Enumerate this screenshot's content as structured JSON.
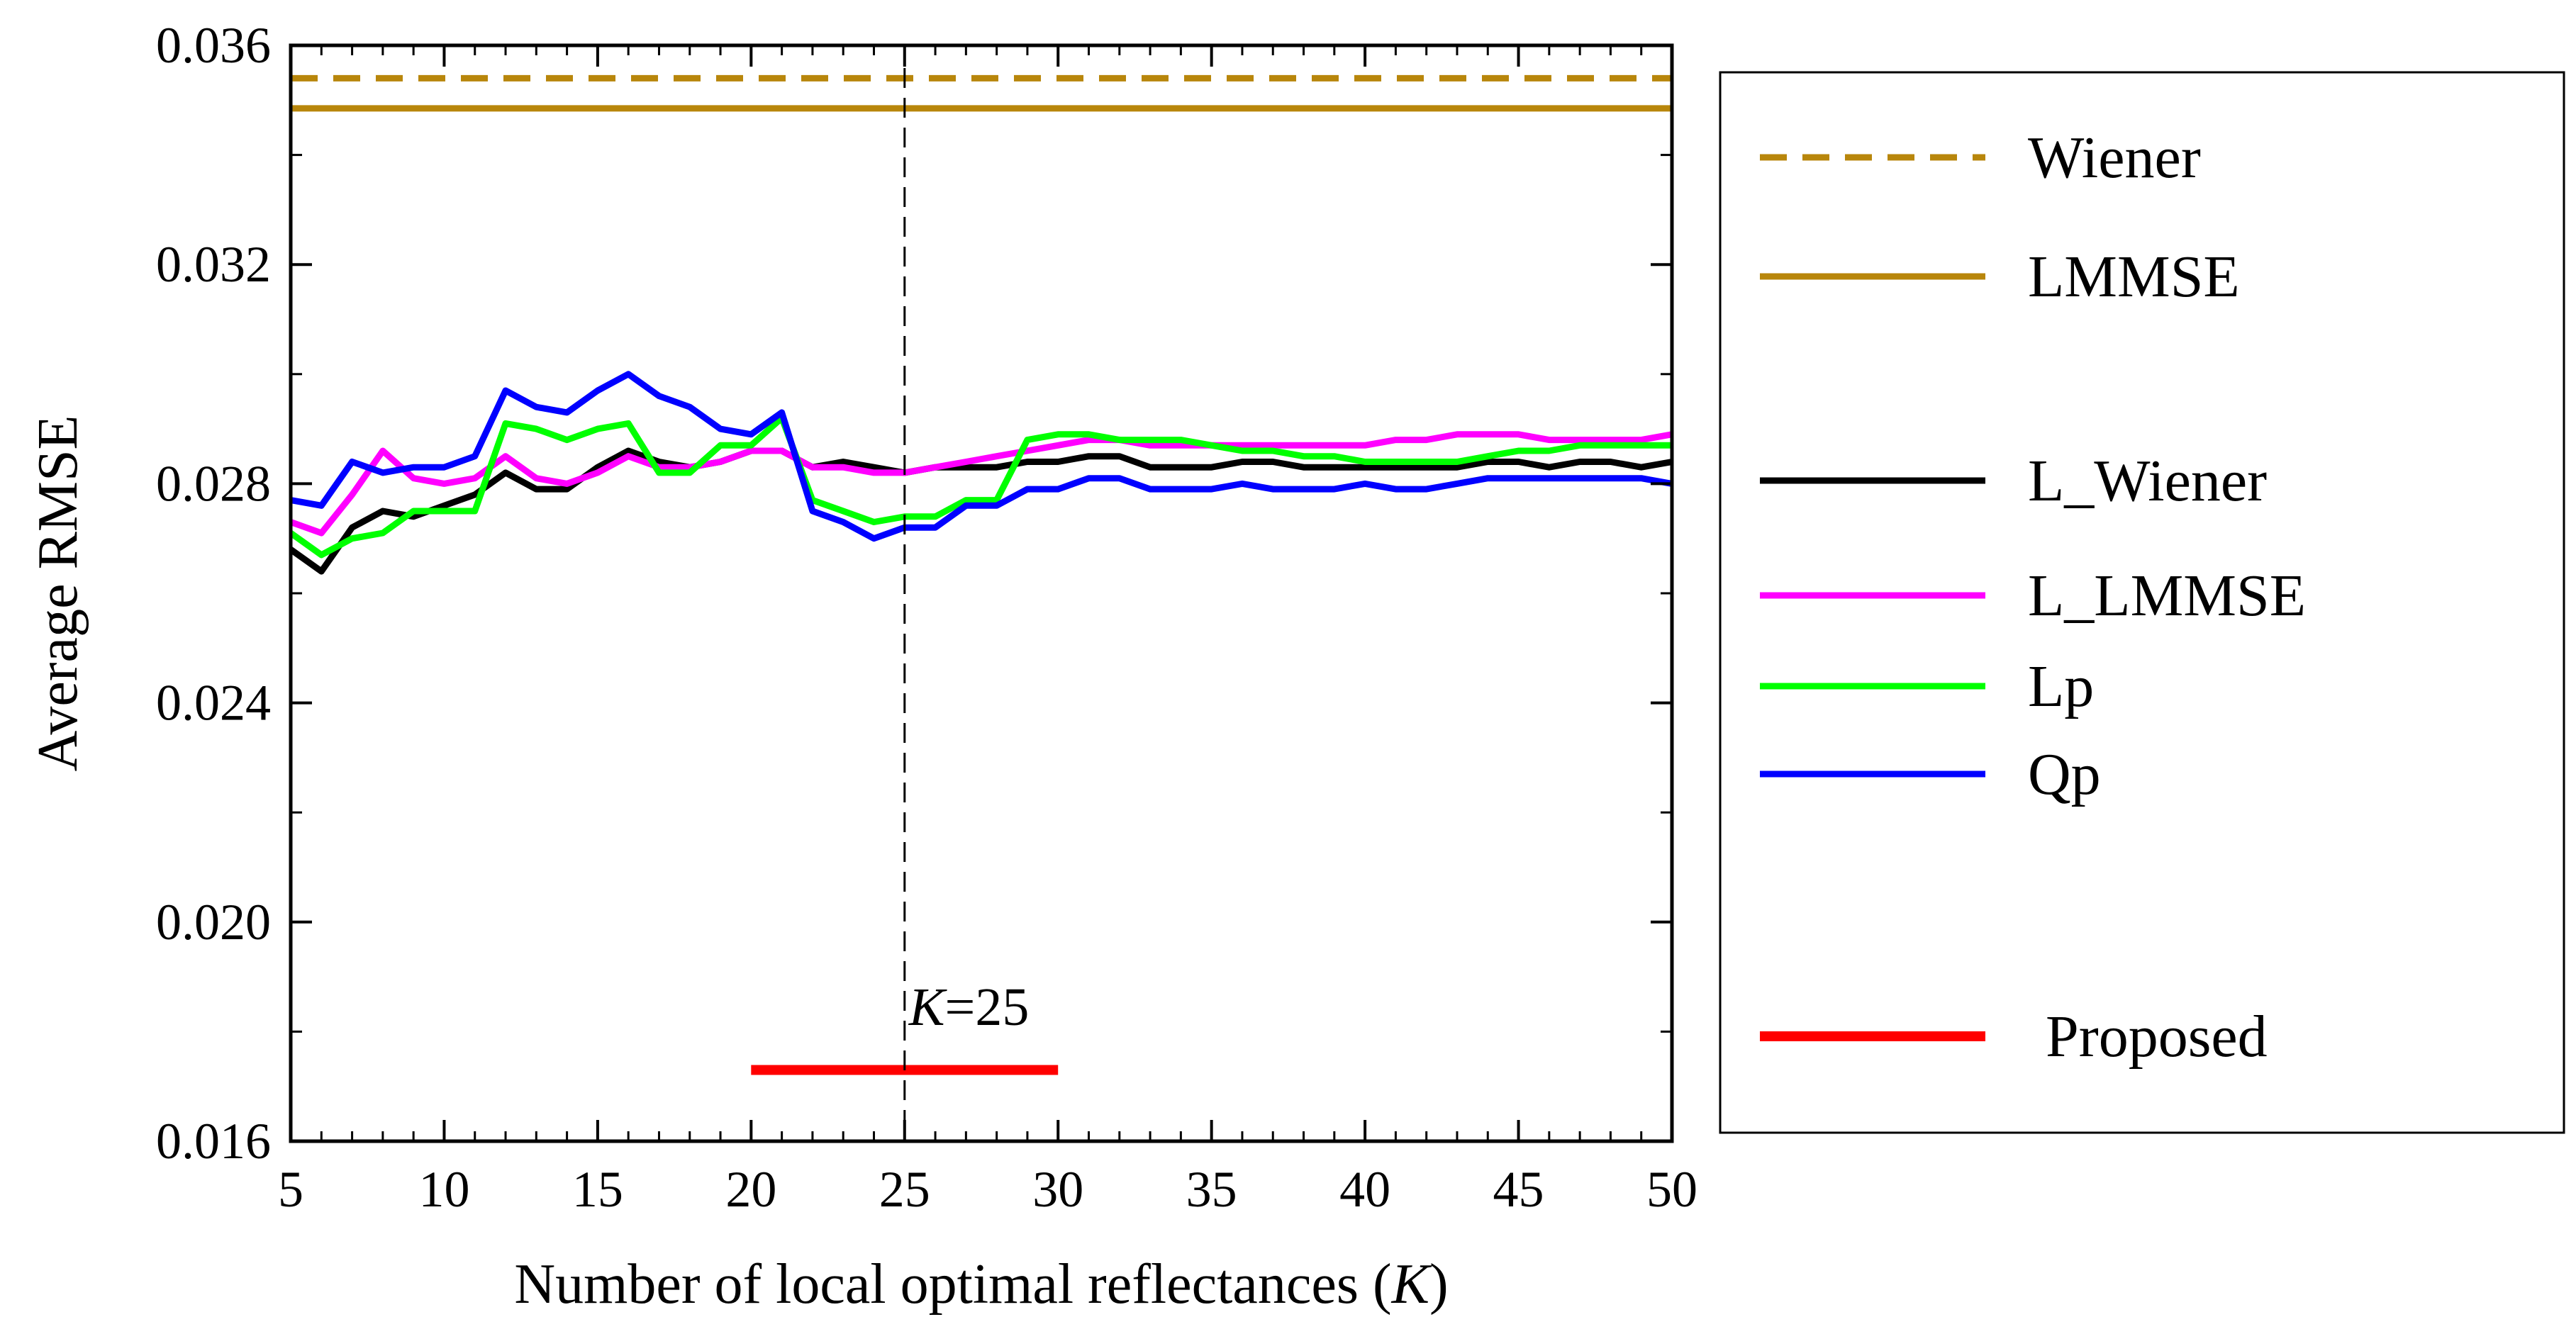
{
  "chart_data": {
    "type": "line",
    "xlabel": "Number of local optimal reflectances",
    "xlabel_symbol": "K",
    "ylabel": "Average RMSE",
    "xlim": [
      5,
      50
    ],
    "ylim": [
      0.016,
      0.036
    ],
    "x_ticks": [
      5,
      10,
      15,
      20,
      25,
      30,
      35,
      40,
      45,
      50
    ],
    "x_tick_labels": [
      "5",
      "10",
      "15",
      "20",
      "25",
      "30",
      "35",
      "40",
      "45",
      "50"
    ],
    "y_ticks": [
      0.016,
      0.02,
      0.024,
      0.028,
      0.032,
      0.036
    ],
    "y_tick_labels": [
      "0.016",
      "0.020",
      "0.024",
      "0.028",
      "0.032",
      "0.036"
    ],
    "y_minor_ticks": [
      0.018,
      0.022,
      0.026,
      0.03,
      0.034
    ],
    "x_minor_step": 1,
    "annotation": {
      "symbol": "K",
      "text": "=25",
      "x": 25
    },
    "marker_line_x": 25,
    "legend_position": "right",
    "series": [
      {
        "name": "Wiener",
        "color": "#B8860B",
        "style": "dashed",
        "x": [
          5,
          50
        ],
        "values": [
          0.0354,
          0.0354
        ]
      },
      {
        "name": "LMMSE",
        "color": "#B8860B",
        "style": "solid",
        "x": [
          5,
          50
        ],
        "values": [
          0.03485,
          0.03485
        ]
      },
      {
        "name": "L_Wiener",
        "color": "#000000",
        "style": "solid",
        "x": [
          5,
          6,
          7,
          8,
          9,
          10,
          11,
          12,
          13,
          14,
          15,
          16,
          17,
          18,
          19,
          20,
          21,
          22,
          23,
          24,
          25,
          26,
          27,
          28,
          29,
          30,
          31,
          32,
          33,
          34,
          35,
          36,
          37,
          38,
          39,
          40,
          41,
          42,
          43,
          44,
          45,
          46,
          47,
          48,
          49,
          50
        ],
        "values": [
          0.0268,
          0.0264,
          0.0272,
          0.0275,
          0.0274,
          0.0276,
          0.0278,
          0.0282,
          0.0279,
          0.0279,
          0.0283,
          0.0286,
          0.0284,
          0.0283,
          0.0284,
          0.0286,
          0.0286,
          0.0283,
          0.0284,
          0.0283,
          0.0282,
          0.0283,
          0.0283,
          0.0283,
          0.0284,
          0.0284,
          0.0285,
          0.0285,
          0.0283,
          0.0283,
          0.0283,
          0.0284,
          0.0284,
          0.0283,
          0.0283,
          0.0283,
          0.0283,
          0.0283,
          0.0283,
          0.0284,
          0.0284,
          0.0283,
          0.0284,
          0.0284,
          0.0283,
          0.0284
        ]
      },
      {
        "name": "L_LMMSE",
        "color": "#FF00FF",
        "style": "solid",
        "x": [
          5,
          6,
          7,
          8,
          9,
          10,
          11,
          12,
          13,
          14,
          15,
          16,
          17,
          18,
          19,
          20,
          21,
          22,
          23,
          24,
          25,
          26,
          27,
          28,
          29,
          30,
          31,
          32,
          33,
          34,
          35,
          36,
          37,
          38,
          39,
          40,
          41,
          42,
          43,
          44,
          45,
          46,
          47,
          48,
          49,
          50
        ],
        "values": [
          0.0273,
          0.0271,
          0.0278,
          0.0286,
          0.0281,
          0.028,
          0.0281,
          0.0285,
          0.0281,
          0.028,
          0.0282,
          0.0285,
          0.0283,
          0.0283,
          0.0284,
          0.0286,
          0.0286,
          0.0283,
          0.0283,
          0.0282,
          0.0282,
          0.0283,
          0.0284,
          0.0285,
          0.0286,
          0.0287,
          0.0288,
          0.0288,
          0.0287,
          0.0287,
          0.0287,
          0.0287,
          0.0287,
          0.0287,
          0.0287,
          0.0287,
          0.0288,
          0.0288,
          0.0289,
          0.0289,
          0.0289,
          0.0288,
          0.0288,
          0.0288,
          0.0288,
          0.0289
        ]
      },
      {
        "name": "Lp",
        "color": "#00FF00",
        "style": "solid",
        "x": [
          5,
          6,
          7,
          8,
          9,
          10,
          11,
          12,
          13,
          14,
          15,
          16,
          17,
          18,
          19,
          20,
          21,
          22,
          23,
          24,
          25,
          26,
          27,
          28,
          29,
          30,
          31,
          32,
          33,
          34,
          35,
          36,
          37,
          38,
          39,
          40,
          41,
          42,
          43,
          44,
          45,
          46,
          47,
          48,
          49,
          50
        ],
        "values": [
          0.0271,
          0.0267,
          0.027,
          0.0271,
          0.0275,
          0.0275,
          0.0275,
          0.0291,
          0.029,
          0.0288,
          0.029,
          0.0291,
          0.0282,
          0.0282,
          0.0287,
          0.0287,
          0.0292,
          0.0277,
          0.0275,
          0.0273,
          0.0274,
          0.0274,
          0.0277,
          0.0277,
          0.0288,
          0.0289,
          0.0289,
          0.0288,
          0.0288,
          0.0288,
          0.0287,
          0.0286,
          0.0286,
          0.0285,
          0.0285,
          0.0284,
          0.0284,
          0.0284,
          0.0284,
          0.0285,
          0.0286,
          0.0286,
          0.0287,
          0.0287,
          0.0287,
          0.0287
        ]
      },
      {
        "name": "Qp",
        "color": "#0000FF",
        "style": "solid",
        "x": [
          5,
          6,
          7,
          8,
          9,
          10,
          11,
          12,
          13,
          14,
          15,
          16,
          17,
          18,
          19,
          20,
          21,
          22,
          23,
          24,
          25,
          26,
          27,
          28,
          29,
          30,
          31,
          32,
          33,
          34,
          35,
          36,
          37,
          38,
          39,
          40,
          41,
          42,
          43,
          44,
          45,
          46,
          47,
          48,
          49,
          50
        ],
        "values": [
          0.0277,
          0.0276,
          0.0284,
          0.0282,
          0.0283,
          0.0283,
          0.0285,
          0.0297,
          0.0294,
          0.0293,
          0.0297,
          0.03,
          0.0296,
          0.0294,
          0.029,
          0.0289,
          0.0293,
          0.0275,
          0.0273,
          0.027,
          0.0272,
          0.0272,
          0.0276,
          0.0276,
          0.0279,
          0.0279,
          0.0281,
          0.0281,
          0.0279,
          0.0279,
          0.0279,
          0.028,
          0.0279,
          0.0279,
          0.0279,
          0.028,
          0.0279,
          0.0279,
          0.028,
          0.0281,
          0.0281,
          0.0281,
          0.0281,
          0.0281,
          0.0281,
          0.028
        ]
      },
      {
        "name": "Proposed",
        "color": "#FF0000",
        "style": "solid",
        "x": [
          20,
          30
        ],
        "values": [
          0.0173,
          0.0173
        ]
      }
    ]
  }
}
